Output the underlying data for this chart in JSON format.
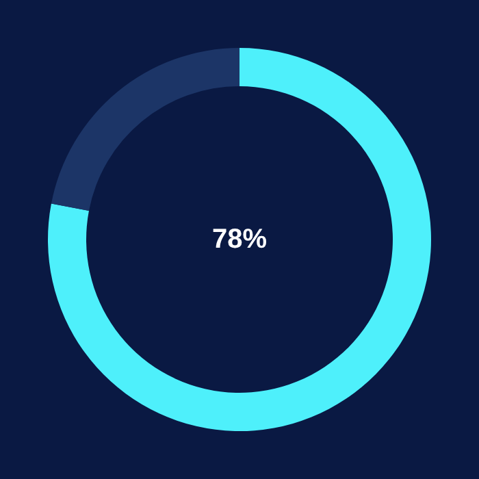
{
  "chart_data": {
    "type": "donut",
    "categories": [
      null,
      null
    ],
    "values": [
      78,
      22
    ],
    "colors": [
      "#4ef0fb",
      "#1c3567"
    ],
    "annotations": [
      "78%"
    ],
    "legend": false
  }
}
